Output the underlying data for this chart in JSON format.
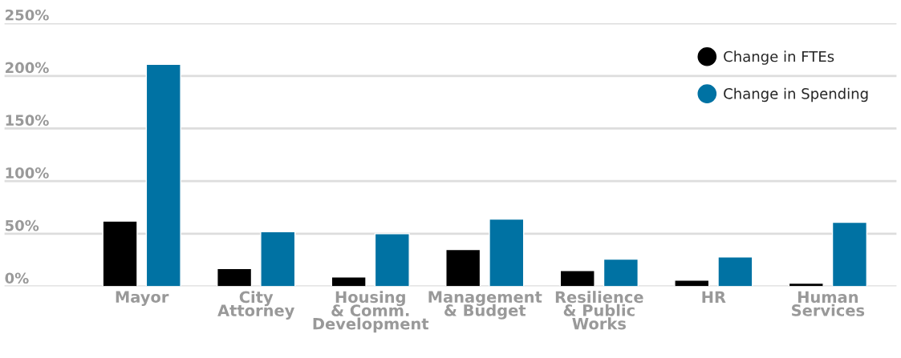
{
  "chart_data": {
    "type": "bar",
    "categories": [
      "Mayor",
      "City\nAttorney",
      "Housing\n& Comm.\nDevelopment",
      "Management\n& Budget",
      "Resilience\n& Public\nWorks",
      "HR",
      "Human\nServices"
    ],
    "series": [
      {
        "name": "Change in FTEs",
        "color": "#000000",
        "values": [
          62,
          17,
          9,
          35,
          15,
          6,
          3
        ]
      },
      {
        "name": "Change in Spending",
        "color": "#0072a3",
        "values": [
          211,
          52,
          50,
          64,
          26,
          28,
          61
        ]
      }
    ],
    "ylim": [
      0,
      250
    ],
    "yticks": [
      {
        "value": 0,
        "label": "0%"
      },
      {
        "value": 50,
        "label": "50%"
      },
      {
        "value": 100,
        "label": "100%"
      },
      {
        "value": 150,
        "label": "150%"
      },
      {
        "value": 200,
        "label": "200%"
      },
      {
        "value": 250,
        "label": "250%"
      }
    ],
    "grid": "y",
    "legend": "top right",
    "marker": "circle"
  }
}
